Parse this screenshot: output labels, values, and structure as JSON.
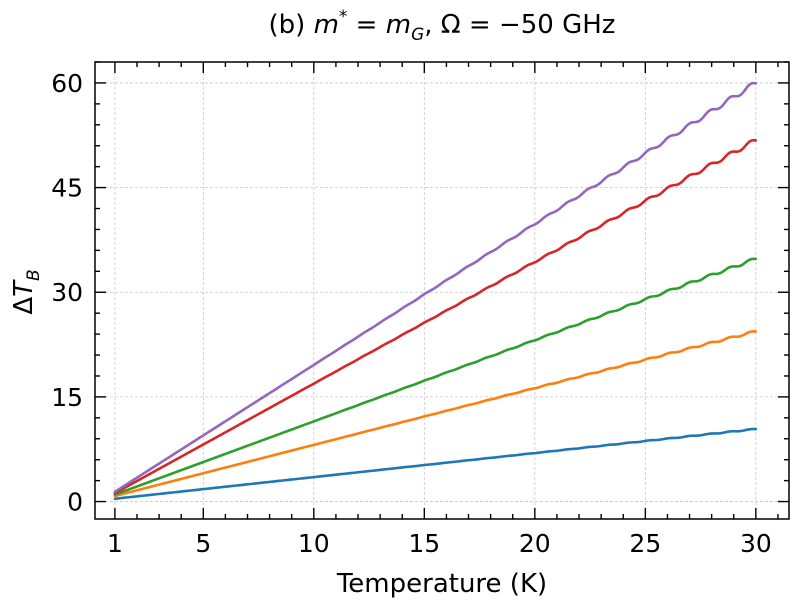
{
  "chart_data": {
    "type": "line",
    "title": "(b) m* = m_G, Ω = −50 GHz",
    "title_parts": {
      "prefix": "(b) ",
      "m": "m",
      "star": "*",
      "eq1": " = ",
      "mg": "m",
      "g_sub": "G",
      "omega_part": ", Ω = −50 GHz"
    },
    "xlabel": "Temperature (K)",
    "ylabel": "ΔT_B",
    "ylabel_parts": {
      "delta": "Δ",
      "t": "T",
      "sub": "B"
    },
    "xlim": [
      0.1,
      31.5
    ],
    "ylim": [
      -2.5,
      63
    ],
    "xticks": [
      1,
      5,
      10,
      15,
      20,
      25,
      30
    ],
    "xtick_labels": [
      "1",
      "5",
      "10",
      "15",
      "20",
      "25",
      "30"
    ],
    "yticks": [
      0,
      15,
      30,
      45,
      60
    ],
    "ytick_labels": [
      "0",
      "15",
      "30",
      "45",
      "60"
    ],
    "grid": true,
    "legend": "none",
    "x": [
      1,
      30
    ],
    "series": [
      {
        "color": "#1f77b4",
        "y_start": 0.4,
        "y_end": 10.4
      },
      {
        "color": "#ff7f0e",
        "y_start": 0.8,
        "y_end": 24.4
      },
      {
        "color": "#2ca02c",
        "y_start": 1.0,
        "y_end": 34.8
      },
      {
        "color": "#d62728",
        "y_start": 1.2,
        "y_end": 51.8
      },
      {
        "color": "#9467bd",
        "y_start": 1.4,
        "y_end": 60.0
      }
    ]
  }
}
